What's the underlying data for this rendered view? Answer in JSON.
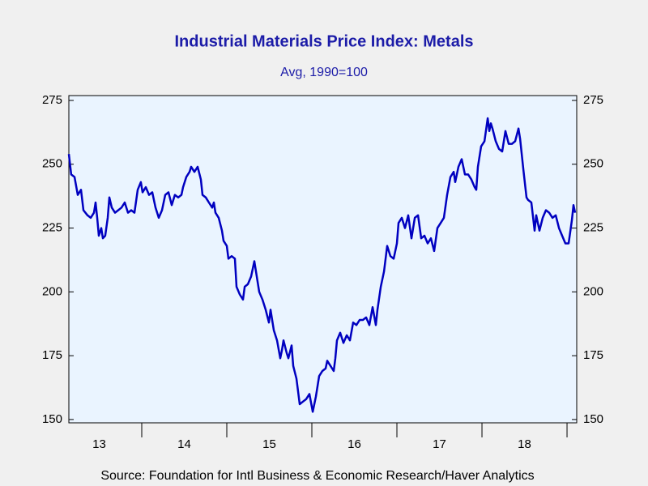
{
  "chart_data": {
    "type": "line",
    "title": "Industrial Materials Price Index: Metals",
    "subtitle": "Avg, 1990=100",
    "source": "Source:  Foundation for Intl Business & Economic Research/Haver Analytics",
    "year_labels": [
      "13",
      "14",
      "15",
      "16",
      "17",
      "18"
    ],
    "xlim": [
      13.143,
      19.114
    ],
    "xticks": [
      14,
      15,
      16,
      17,
      18,
      19
    ],
    "ylim": [
      148.7,
      276.9
    ],
    "yticks": [
      150,
      175,
      200,
      225,
      250,
      275
    ],
    "series": [
      {
        "color": "#0000c0",
        "x": [
          13.143,
          13.171,
          13.21,
          13.248,
          13.286,
          13.314,
          13.362,
          13.4,
          13.438,
          13.457,
          13.476,
          13.495,
          13.524,
          13.543,
          13.571,
          13.6,
          13.619,
          13.648,
          13.686,
          13.724,
          13.762,
          13.8,
          13.838,
          13.876,
          13.914,
          13.952,
          13.99,
          14.01,
          14.048,
          14.086,
          14.124,
          14.162,
          14.2,
          14.238,
          14.276,
          14.314,
          14.352,
          14.39,
          14.429,
          14.467,
          14.486,
          14.524,
          14.562,
          14.581,
          14.619,
          14.657,
          14.695,
          14.714,
          14.752,
          14.79,
          14.829,
          14.848,
          14.867,
          14.905,
          14.943,
          14.962,
          15.0,
          15.019,
          15.057,
          15.095,
          15.114,
          15.152,
          15.19,
          15.21,
          15.248,
          15.286,
          15.324,
          15.343,
          15.381,
          15.419,
          15.457,
          15.495,
          15.514,
          15.552,
          15.59,
          15.629,
          15.648,
          15.667,
          15.705,
          15.724,
          15.762,
          15.781,
          15.819,
          15.857,
          15.895,
          15.933,
          15.971,
          16.01,
          16.048,
          16.086,
          16.124,
          16.162,
          16.181,
          16.219,
          16.257,
          16.276,
          16.295,
          16.333,
          16.371,
          16.41,
          16.448,
          16.486,
          16.524,
          16.562,
          16.6,
          16.638,
          16.676,
          16.714,
          16.752,
          16.771,
          16.81,
          16.848,
          16.886,
          16.924,
          16.962,
          17.0,
          17.019,
          17.057,
          17.095,
          17.133,
          17.171,
          17.21,
          17.248,
          17.286,
          17.324,
          17.362,
          17.4,
          17.438,
          17.476,
          17.514,
          17.552,
          17.59,
          17.629,
          17.667,
          17.686,
          17.724,
          17.762,
          17.8,
          17.838,
          17.876,
          17.914,
          17.933,
          17.952,
          17.99,
          18.029,
          18.067,
          18.086,
          18.105,
          18.124,
          18.162,
          18.2,
          18.238,
          18.276,
          18.314,
          18.352,
          18.39,
          18.429,
          18.448,
          18.486,
          18.524,
          18.543,
          18.581,
          18.619,
          18.638,
          18.676,
          18.714,
          18.752,
          18.79,
          18.829,
          18.867,
          18.905,
          18.943,
          18.981,
          19.019,
          19.057,
          19.076,
          19.095
        ],
        "values": [
          254,
          246,
          245,
          238,
          240,
          232,
          230,
          229,
          231,
          235,
          229,
          222,
          225,
          221,
          222,
          229,
          237,
          233,
          231,
          232,
          233,
          235,
          231,
          232,
          231,
          240,
          243,
          239,
          241,
          238,
          239,
          233,
          229,
          232,
          238,
          239,
          234,
          238,
          237,
          238,
          241,
          245,
          247,
          249,
          247,
          249,
          244,
          238,
          237,
          235,
          233,
          235,
          231,
          229,
          224,
          220,
          218,
          213,
          214,
          213,
          202,
          199,
          197,
          202,
          203,
          206,
          212,
          208,
          200,
          197,
          193,
          188,
          193,
          185,
          181,
          174,
          177,
          181,
          176,
          174,
          179,
          171,
          166,
          156,
          157,
          158,
          160,
          153,
          159,
          167,
          169,
          170,
          173,
          171,
          169,
          174,
          181,
          184,
          180,
          183,
          181,
          188,
          187,
          189,
          189,
          190,
          187,
          194,
          187,
          193,
          202,
          208,
          218,
          214,
          213,
          219,
          227,
          229,
          225,
          230,
          221,
          229,
          230,
          221,
          222,
          219,
          221,
          216,
          225,
          227,
          229,
          238,
          245,
          247,
          243,
          249,
          252,
          246,
          246,
          244,
          241,
          240,
          249,
          257,
          259,
          268,
          263,
          266,
          264,
          259,
          256,
          255,
          263,
          258,
          258,
          259,
          264,
          260,
          248,
          237,
          236,
          235,
          224,
          230,
          224,
          229,
          232,
          231,
          229,
          230,
          225,
          222,
          219,
          219,
          228,
          234,
          231
        ]
      }
    ]
  }
}
